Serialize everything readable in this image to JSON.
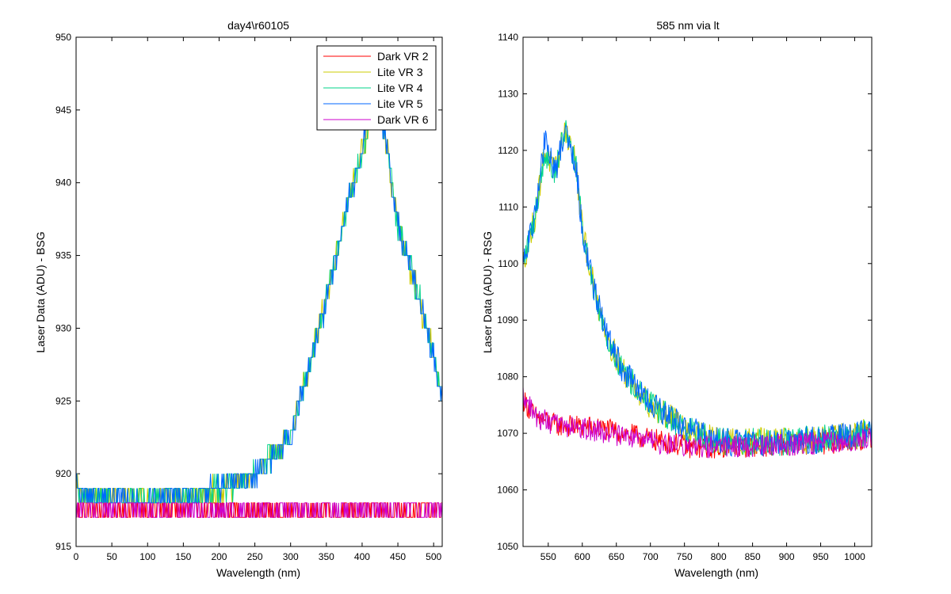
{
  "colors": {
    "red": "#ff0000",
    "yellow": "#cccc00",
    "green": "#00d38a",
    "blue": "#0066ff",
    "magenta": "#cc00cc"
  },
  "chart_data": [
    {
      "type": "line",
      "title": "day4\\r60105",
      "xlabel": "Wavelength (nm)",
      "ylabel": "Laser Data (ADU) - BSG",
      "xlim": [
        0,
        512
      ],
      "ylim": [
        915,
        950
      ],
      "xticks": [
        0,
        50,
        100,
        150,
        200,
        250,
        300,
        350,
        400,
        450,
        500
      ],
      "yticks": [
        915,
        920,
        925,
        930,
        935,
        940,
        945,
        950
      ],
      "legend_position": "top-right",
      "grid": false,
      "series": [
        {
          "name": "Dark VR 2",
          "color": "red",
          "curve": [
            [
              0,
              917.5
            ],
            [
              512,
              917.5
            ]
          ],
          "noise": 0.6,
          "quantize": 1
        },
        {
          "name": "Lite VR 3",
          "color": "yellow",
          "curve": [
            [
              0,
              920
            ],
            [
              5,
              918.5
            ],
            [
              100,
              918.3
            ],
            [
              200,
              918.8
            ],
            [
              250,
              920
            ],
            [
              300,
              922.5
            ],
            [
              350,
              932
            ],
            [
              380,
              938.5
            ],
            [
              400,
              942
            ],
            [
              415,
              945
            ],
            [
              430,
              944
            ],
            [
              450,
              937
            ],
            [
              480,
              932
            ],
            [
              512,
              925.5
            ]
          ],
          "noise": 0.8,
          "quantize": 1
        },
        {
          "name": "Lite VR 4",
          "color": "green",
          "curve": [
            [
              0,
              919.5
            ],
            [
              5,
              918.5
            ],
            [
              100,
              918.3
            ],
            [
              200,
              918.8
            ],
            [
              250,
              920
            ],
            [
              300,
              922.5
            ],
            [
              350,
              932
            ],
            [
              380,
              938.5
            ],
            [
              400,
              942
            ],
            [
              415,
              945
            ],
            [
              430,
              944
            ],
            [
              450,
              937
            ],
            [
              480,
              932
            ],
            [
              512,
              925.5
            ]
          ],
          "noise": 0.8,
          "quantize": 1
        },
        {
          "name": "Lite VR 5",
          "color": "blue",
          "curve": [
            [
              0,
              919.5
            ],
            [
              5,
              918.5
            ],
            [
              100,
              918.3
            ],
            [
              200,
              918.8
            ],
            [
              250,
              920
            ],
            [
              300,
              922.5
            ],
            [
              350,
              932
            ],
            [
              380,
              938.5
            ],
            [
              400,
              942
            ],
            [
              415,
              947
            ],
            [
              430,
              944
            ],
            [
              450,
              937
            ],
            [
              480,
              932
            ],
            [
              512,
              925.5
            ]
          ],
          "noise": 0.8,
          "quantize": 1
        },
        {
          "name": "Dark VR 6",
          "color": "magenta",
          "curve": [
            [
              0,
              917.5
            ],
            [
              512,
              917.5
            ]
          ],
          "noise": 0.6,
          "quantize": 1
        }
      ]
    },
    {
      "type": "line",
      "title": "585 nm via lt",
      "xlabel": "Wavelength (nm)",
      "ylabel": "Laser Data (ADU) - RSG",
      "xlim": [
        513,
        1025
      ],
      "ylim": [
        1050,
        1140
      ],
      "xticks": [
        550,
        600,
        650,
        700,
        750,
        800,
        850,
        900,
        950,
        1000
      ],
      "yticks": [
        1050,
        1060,
        1070,
        1080,
        1090,
        1100,
        1110,
        1120,
        1130,
        1140
      ],
      "series": [
        {
          "name": "Dark VR 2",
          "color": "red",
          "curve": [
            [
              513,
              1076
            ],
            [
              530,
              1073
            ],
            [
              560,
              1071.5
            ],
            [
              620,
              1071
            ],
            [
              700,
              1069
            ],
            [
              760,
              1067.5
            ],
            [
              800,
              1067.5
            ],
            [
              900,
              1068
            ],
            [
              1000,
              1068.5
            ],
            [
              1025,
              1069.5
            ]
          ],
          "noise": 2
        },
        {
          "name": "Lite VR 3",
          "color": "yellow",
          "curve": [
            [
              513,
              1100
            ],
            [
              530,
              1108
            ],
            [
              545,
              1120
            ],
            [
              560,
              1116
            ],
            [
              575,
              1124
            ],
            [
              590,
              1118
            ],
            [
              600,
              1106
            ],
            [
              620,
              1094
            ],
            [
              640,
              1086
            ],
            [
              660,
              1081
            ],
            [
              700,
              1075
            ],
            [
              750,
              1071
            ],
            [
              800,
              1068.5
            ],
            [
              900,
              1068.5
            ],
            [
              1000,
              1069.5
            ],
            [
              1025,
              1070.5
            ]
          ],
          "noise": 2.5
        },
        {
          "name": "Lite VR 4",
          "color": "green",
          "curve": [
            [
              513,
              1100
            ],
            [
              530,
              1108
            ],
            [
              545,
              1120
            ],
            [
              560,
              1116
            ],
            [
              575,
              1124
            ],
            [
              590,
              1118
            ],
            [
              600,
              1106
            ],
            [
              620,
              1094
            ],
            [
              640,
              1086
            ],
            [
              660,
              1081
            ],
            [
              700,
              1075
            ],
            [
              750,
              1071
            ],
            [
              800,
              1068.5
            ],
            [
              900,
              1068.5
            ],
            [
              1000,
              1069.5
            ],
            [
              1025,
              1070.5
            ]
          ],
          "noise": 2.5
        },
        {
          "name": "Lite VR 5",
          "color": "blue",
          "curve": [
            [
              513,
              1100
            ],
            [
              530,
              1108
            ],
            [
              545,
              1122
            ],
            [
              560,
              1116
            ],
            [
              575,
              1124
            ],
            [
              590,
              1118
            ],
            [
              600,
              1106
            ],
            [
              620,
              1094
            ],
            [
              640,
              1086
            ],
            [
              660,
              1081
            ],
            [
              700,
              1075
            ],
            [
              750,
              1071
            ],
            [
              800,
              1068.5
            ],
            [
              900,
              1068.5
            ],
            [
              1000,
              1069.5
            ],
            [
              1025,
              1070.5
            ]
          ],
          "noise": 2.5
        },
        {
          "name": "Dark VR 6",
          "color": "magenta",
          "curve": [
            [
              513,
              1077
            ],
            [
              530,
              1073
            ],
            [
              560,
              1071.5
            ],
            [
              620,
              1070.5
            ],
            [
              700,
              1068.5
            ],
            [
              760,
              1067.5
            ],
            [
              800,
              1067.5
            ],
            [
              900,
              1068
            ],
            [
              1000,
              1068.5
            ],
            [
              1025,
              1069.5
            ]
          ],
          "noise": 2
        }
      ]
    }
  ]
}
